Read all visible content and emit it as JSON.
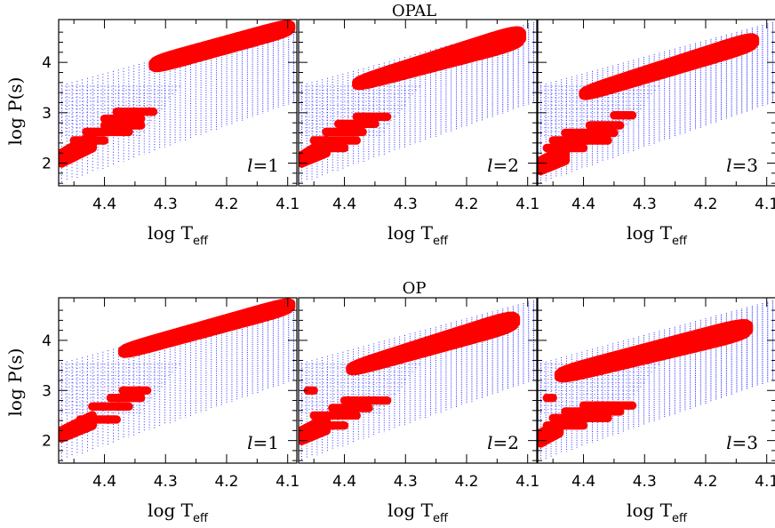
{
  "colors": {
    "grid_points": "#1a1aff",
    "unstable_modes": "#ff0000",
    "unstable_modes_edge": "#cc0000"
  },
  "chart_data": [
    {
      "type": "scatter",
      "title": "OPAL",
      "xlabel": "log T",
      "xlabel_sub": "eff",
      "ylabel": "log P(s)",
      "xlim": [
        4.475,
        4.085
      ],
      "ylim": [
        1.55,
        4.85
      ],
      "xticks": [
        "4.4",
        "4.3",
        "4.2",
        "4.1"
      ],
      "xtick_values": [
        4.4,
        4.3,
        4.2,
        4.1
      ],
      "yticks": [
        "2",
        "3",
        "4"
      ],
      "ytick_values": [
        2,
        3,
        4
      ],
      "series": [
        {
          "type": "grid",
          "x_range": [
            4.47,
            4.09
          ],
          "upper_line": [
            [
              4.47,
              3.55
            ],
            [
              4.09,
              4.8
            ]
          ],
          "lower_line": [
            [
              4.47,
              1.6
            ],
            [
              4.09,
              3.2
            ]
          ]
        }
      ],
      "panels": [
        {
          "label": "l=1",
          "degree_value": "1",
          "regions": [
            {
              "shape": "ellipse",
              "x": [
                4.32,
                4.095
              ],
              "p_low": [
                3.85,
                4.6
              ],
              "p_high": [
                4.05,
                4.8
              ]
            },
            {
              "shape": "band",
              "x": [
                4.47,
                4.42
              ],
              "p_low": [
                2.0,
                2.3
              ],
              "p_high": [
                2.2,
                2.55
              ]
            },
            {
              "shape": "rows",
              "rows": [
                {
                  "p": 2.45,
                  "x": [
                    4.45,
                    4.4
                  ]
                },
                {
                  "p": 2.62,
                  "x": [
                    4.43,
                    4.36
                  ]
                },
                {
                  "p": 2.75,
                  "x": [
                    4.4,
                    4.34
                  ]
                },
                {
                  "p": 2.88,
                  "x": [
                    4.4,
                    4.34
                  ]
                },
                {
                  "p": 3.02,
                  "x": [
                    4.38,
                    4.32
                  ]
                }
              ]
            }
          ]
        },
        {
          "label": "l=2",
          "degree_value": "2",
          "regions": [
            {
              "shape": "ellipse",
              "x": [
                4.38,
                4.11
              ],
              "p_low": [
                3.5,
                4.35
              ],
              "p_high": [
                3.65,
                4.7
              ]
            },
            {
              "shape": "band",
              "x": [
                4.47,
                4.43
              ],
              "p_low": [
                2.0,
                2.2
              ],
              "p_high": [
                2.15,
                2.45
              ]
            },
            {
              "shape": "rows",
              "rows": [
                {
                  "p": 2.3,
                  "x": [
                    4.45,
                    4.4
                  ]
                },
                {
                  "p": 2.45,
                  "x": [
                    4.45,
                    4.38
                  ]
                },
                {
                  "p": 2.62,
                  "x": [
                    4.43,
                    4.37
                  ]
                },
                {
                  "p": 2.78,
                  "x": [
                    4.41,
                    4.35
                  ]
                },
                {
                  "p": 2.92,
                  "x": [
                    4.38,
                    4.33
                  ]
                }
              ]
            }
          ]
        },
        {
          "label": "l=3",
          "degree_value": "3",
          "regions": [
            {
              "shape": "ellipse",
              "x": [
                4.4,
                4.12
              ],
              "p_low": [
                3.3,
                4.3
              ],
              "p_high": [
                3.45,
                4.55
              ]
            },
            {
              "shape": "band",
              "x": [
                4.47,
                4.43
              ],
              "p_low": [
                1.85,
                2.05
              ],
              "p_high": [
                2.05,
                2.3
              ]
            },
            {
              "shape": "rows",
              "rows": [
                {
                  "p": 2.3,
                  "x": [
                    4.46,
                    4.4
                  ]
                },
                {
                  "p": 2.45,
                  "x": [
                    4.45,
                    4.36
                  ]
                },
                {
                  "p": 2.6,
                  "x": [
                    4.43,
                    4.35
                  ]
                },
                {
                  "p": 2.75,
                  "x": [
                    4.39,
                    4.34
                  ]
                },
                {
                  "p": 2.95,
                  "x": [
                    4.35,
                    4.32
                  ]
                }
              ]
            }
          ]
        }
      ]
    },
    {
      "type": "scatter",
      "title": "OP",
      "xlabel": "log T",
      "xlabel_sub": "eff",
      "ylabel": "log P(s)",
      "xlim": [
        4.475,
        4.085
      ],
      "ylim": [
        1.55,
        4.85
      ],
      "xticks": [
        "4.4",
        "4.3",
        "4.2",
        "4.1"
      ],
      "xtick_values": [
        4.4,
        4.3,
        4.2,
        4.1
      ],
      "yticks": [
        "2",
        "3",
        "4"
      ],
      "ytick_values": [
        2,
        3,
        4
      ],
      "series": [
        {
          "type": "grid",
          "x_range": [
            4.47,
            4.09
          ],
          "upper_line": [
            [
              4.47,
              3.55
            ],
            [
              4.09,
              4.8
            ]
          ],
          "lower_line": [
            [
              4.47,
              1.6
            ],
            [
              4.09,
              3.2
            ]
          ]
        }
      ],
      "panels": [
        {
          "label": "l=1",
          "degree_value": "1",
          "regions": [
            {
              "shape": "ellipse",
              "x": [
                4.37,
                4.095
              ],
              "p_low": [
                3.7,
                4.6
              ],
              "p_high": [
                3.85,
                4.8
              ]
            },
            {
              "shape": "band",
              "x": [
                4.47,
                4.42
              ],
              "p_low": [
                2.05,
                2.3
              ],
              "p_high": [
                2.2,
                2.5
              ]
            },
            {
              "shape": "rows",
              "rows": [
                {
                  "p": 2.42,
                  "x": [
                    4.44,
                    4.38
                  ]
                },
                {
                  "p": 2.68,
                  "x": [
                    4.42,
                    4.36
                  ]
                },
                {
                  "p": 2.85,
                  "x": [
                    4.39,
                    4.34
                  ]
                },
                {
                  "p": 3.0,
                  "x": [
                    4.37,
                    4.33
                  ]
                }
              ]
            }
          ]
        },
        {
          "label": "l=2",
          "degree_value": "2",
          "regions": [
            {
              "shape": "ellipse",
              "x": [
                4.39,
                4.12
              ],
              "p_low": [
                3.35,
                4.25
              ],
              "p_high": [
                3.5,
                4.55
              ]
            },
            {
              "shape": "band",
              "x": [
                4.47,
                4.43
              ],
              "p_low": [
                2.0,
                2.2
              ],
              "p_high": [
                2.2,
                2.45
              ]
            },
            {
              "shape": "rows",
              "rows": [
                {
                  "p": 2.3,
                  "x": [
                    4.45,
                    4.4
                  ]
                },
                {
                  "p": 2.5,
                  "x": [
                    4.45,
                    4.38
                  ]
                },
                {
                  "p": 2.65,
                  "x": [
                    4.42,
                    4.36
                  ]
                },
                {
                  "p": 2.8,
                  "x": [
                    4.4,
                    4.33
                  ]
                },
                {
                  "p": 3.0,
                  "x": [
                    4.46,
                    4.45
                  ]
                }
              ]
            }
          ]
        },
        {
          "label": "l=3",
          "degree_value": "3",
          "regions": [
            {
              "shape": "ellipse",
              "x": [
                4.44,
                4.13
              ],
              "p_low": [
                3.2,
                4.1
              ],
              "p_high": [
                3.4,
                4.4
              ]
            },
            {
              "shape": "band",
              "x": [
                4.47,
                4.44
              ],
              "p_low": [
                1.95,
                2.15
              ],
              "p_high": [
                2.15,
                2.35
              ]
            },
            {
              "shape": "rows",
              "rows": [
                {
                  "p": 2.3,
                  "x": [
                    4.46,
                    4.4
                  ]
                },
                {
                  "p": 2.45,
                  "x": [
                    4.45,
                    4.36
                  ]
                },
                {
                  "p": 2.58,
                  "x": [
                    4.43,
                    4.34
                  ]
                },
                {
                  "p": 2.7,
                  "x": [
                    4.4,
                    4.32
                  ]
                },
                {
                  "p": 2.85,
                  "x": [
                    4.46,
                    4.45
                  ]
                }
              ]
            }
          ]
        }
      ]
    }
  ]
}
